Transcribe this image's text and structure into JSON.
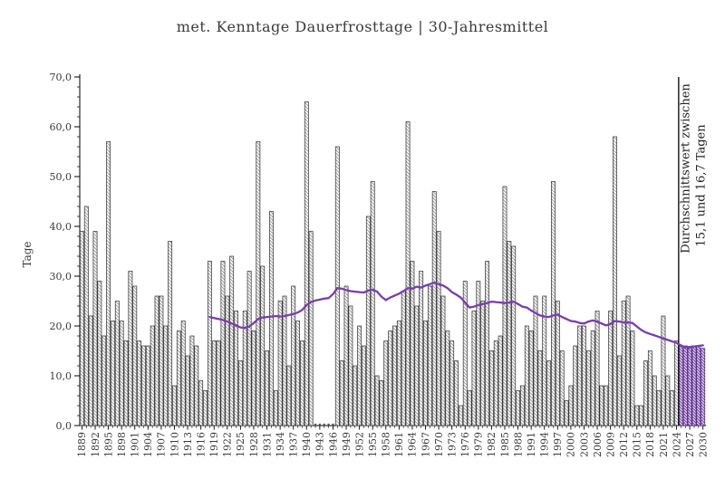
{
  "title": "met. Kenntage Dauerfrosttage | 30-Jahresmittel",
  "chart_data": {
    "type": "bar",
    "title": "met. Kenntage Dauerfrosttage | 30-Jahresmittel",
    "xlabel": "",
    "ylabel": "Tage",
    "ylim": [
      0,
      70
    ],
    "ytick_step": 10,
    "ytick_minor_step": 2,
    "ytick_labels": [
      "0,0",
      "10,0",
      "20,0",
      "30,0",
      "40,0",
      "50,0",
      "60,0",
      "70,0"
    ],
    "x_start": 1889,
    "x_end": 2030,
    "xtick_label_step": 3,
    "xtick_labels": [
      "1889",
      "1892",
      "1895",
      "1898",
      "1901",
      "1904",
      "1907",
      "1910",
      "1913",
      "1916",
      "1919",
      "1922",
      "1925",
      "1928",
      "1931",
      "1934",
      "1937",
      "1940",
      "1943",
      "1946",
      "1949",
      "1952",
      "1955",
      "1958",
      "1961",
      "1964",
      "1967",
      "1970",
      "1973",
      "1976",
      "1979",
      "1982",
      "1985",
      "1988",
      "1991",
      "1994",
      "1997",
      "2000",
      "2003",
      "2006",
      "2009",
      "2012",
      "2015",
      "2018",
      "2021",
      "2024",
      "2027",
      "2030"
    ],
    "grid": false,
    "legend": "none",
    "missing_years": [
      1942,
      1943,
      1944,
      1945,
      1946
    ],
    "forecast_from": 2025,
    "annotation": {
      "line1": "Durchschnittswert zwischen",
      "line2": "15,1 und 16,7 Tagen",
      "divider_between": [
        2024,
        2025
      ]
    },
    "series": [
      {
        "name": "Dauerfrosttage",
        "kind": "bar",
        "year_start": 1889,
        "values": [
          39,
          44,
          22,
          39,
          29,
          18,
          57,
          21,
          25,
          21,
          17,
          31,
          28,
          17,
          16,
          16,
          20,
          26,
          26,
          20,
          37,
          8,
          19,
          21,
          14,
          18,
          16,
          9,
          7,
          33,
          17,
          17,
          33,
          26,
          34,
          23,
          13,
          23,
          31,
          19,
          57,
          32,
          15,
          43,
          7,
          25,
          26,
          12,
          28,
          21,
          17,
          65,
          39,
          null,
          null,
          null,
          null,
          null,
          56,
          13,
          28,
          24,
          12,
          20,
          16,
          42,
          49,
          10,
          9,
          17,
          19,
          20,
          21,
          27,
          61,
          33,
          24,
          31,
          21,
          28,
          47,
          39,
          26,
          19,
          17,
          13,
          4,
          29,
          7,
          23,
          29,
          25,
          33,
          15,
          17,
          18,
          48,
          37,
          36,
          7,
          8,
          20,
          19,
          26,
          15,
          26,
          13,
          49,
          25,
          15,
          5,
          8,
          16,
          20,
          20,
          15,
          19,
          23,
          8,
          8,
          23,
          58,
          14,
          25,
          26,
          19,
          4,
          4,
          13,
          15,
          10,
          7,
          22,
          10,
          7,
          17,
          16,
          16,
          15.5,
          16,
          16,
          15.5
        ]
      },
      {
        "name": "30-Jahresmittel",
        "kind": "line",
        "year_start": 1918,
        "values": [
          21.8,
          21.6,
          21.4,
          21.2,
          20.9,
          20.5,
          20.1,
          19.7,
          19.6,
          19.9,
          20.6,
          21.4,
          21.7,
          21.8,
          21.9,
          22.0,
          21.9,
          22.0,
          22.2,
          22.4,
          22.7,
          23.2,
          24.2,
          24.8,
          25.1,
          25.3,
          25.5,
          25.6,
          26.4,
          27.6,
          27.5,
          27.2,
          27.0,
          26.9,
          26.8,
          26.7,
          27.1,
          27.3,
          26.9,
          25.9,
          25.2,
          25.7,
          26.1,
          26.5,
          27.0,
          27.6,
          27.5,
          27.9,
          27.7,
          28.1,
          28.4,
          28.7,
          28.4,
          28.1,
          27.6,
          26.8,
          26.3,
          25.7,
          24.7,
          23.7,
          23.9,
          24.2,
          24.4,
          24.6,
          24.9,
          24.8,
          24.7,
          24.6,
          24.7,
          24.9,
          24.4,
          23.9,
          23.7,
          23.1,
          22.6,
          22.1,
          21.9,
          21.8,
          22.1,
          22.3,
          21.8,
          21.4,
          21.0,
          20.9,
          20.6,
          20.5,
          20.9,
          21.1,
          20.9,
          20.5,
          20.1,
          20.4,
          21.0,
          20.9,
          20.7,
          20.7,
          20.6,
          19.9,
          19.2,
          18.7,
          18.4,
          18.1,
          17.8,
          17.5,
          17.2,
          16.9,
          16.6,
          16.1,
          15.7,
          15.8,
          15.9,
          16.0,
          16.1
        ]
      }
    ],
    "colors": {
      "background": "#ffffff",
      "bar_hatch": "#999999",
      "bar_edge": "#2f2f2f",
      "forecast_hatch": "#7d3fb2",
      "forecast_edge": "#40256b",
      "mean_line": "#7b3cad",
      "axis": "#000000",
      "text": "#3a3a3a",
      "missing_mark": "#555555"
    }
  }
}
